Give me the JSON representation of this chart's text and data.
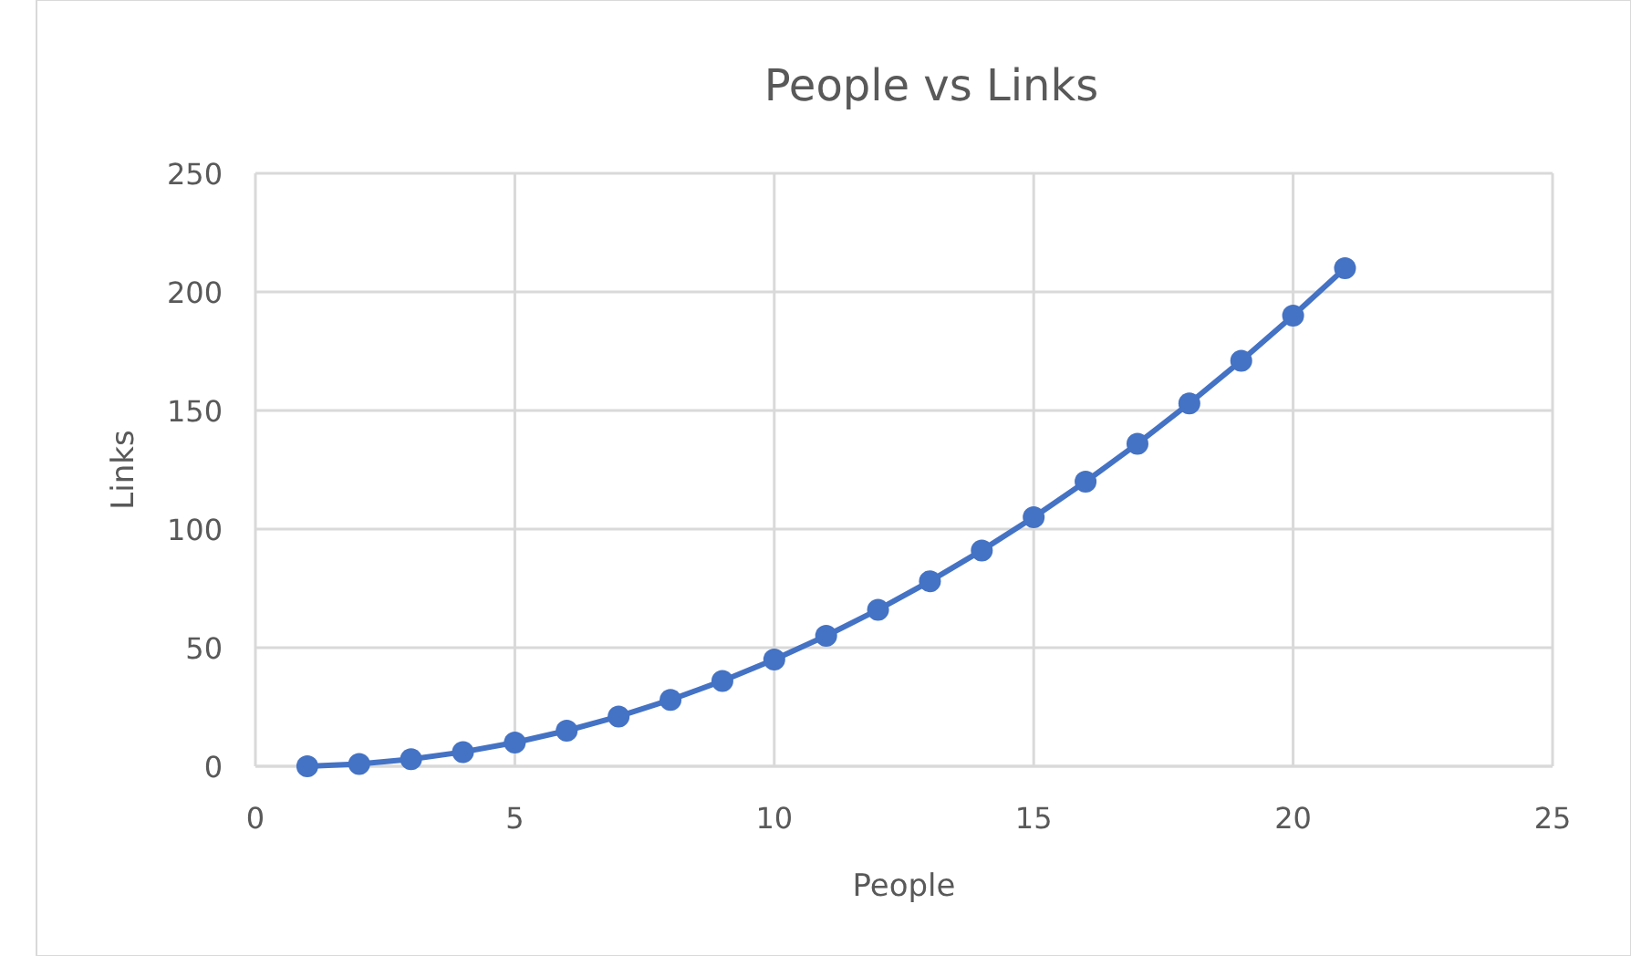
{
  "chart_data": {
    "type": "line",
    "title": "People vs Links",
    "xlabel": "People",
    "ylabel": "Links",
    "x": [
      1,
      2,
      3,
      4,
      5,
      6,
      7,
      8,
      9,
      10,
      11,
      12,
      13,
      14,
      15,
      16,
      17,
      18,
      19,
      20,
      21
    ],
    "series": [
      {
        "color": "#4472c4",
        "values": [
          0,
          1,
          3,
          6,
          10,
          15,
          21,
          28,
          36,
          45,
          55,
          66,
          78,
          91,
          105,
          120,
          136,
          153,
          171,
          190,
          210
        ]
      }
    ],
    "xlim": [
      0,
      25
    ],
    "xticks": [
      0,
      5,
      10,
      15,
      20,
      25
    ],
    "ylim": [
      0,
      250
    ],
    "yticks": [
      0,
      50,
      100,
      150,
      200,
      250
    ],
    "grid": true,
    "marker": "circle",
    "line_style": "solid"
  }
}
